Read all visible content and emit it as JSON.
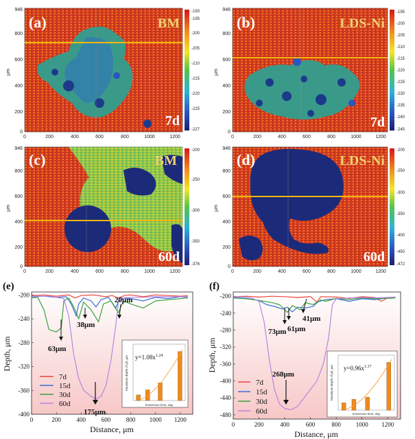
{
  "maps": [
    {
      "letter": "(a)",
      "name": "BM",
      "day": "7d",
      "y_ticks": [
        "946",
        "800",
        "600",
        "400",
        "200",
        "0"
      ],
      "cb_ticks": [
        "-193",
        "-195",
        "-200",
        "-205",
        "-210",
        "-215",
        "-220",
        "-225",
        "-227"
      ]
    },
    {
      "letter": "(b)",
      "name": "LDS-Ni",
      "day": "7d",
      "y_ticks": [
        "946",
        "800",
        "600",
        "400",
        "200",
        "0"
      ],
      "cb_ticks": [
        "-195",
        "-200",
        "-205",
        "-210",
        "-215",
        "-220",
        "-225",
        "-230",
        "-235",
        "-240",
        "-245"
      ]
    },
    {
      "letter": "(c)",
      "name": "BM",
      "day": "60d",
      "y_ticks": [
        "946",
        "800",
        "600",
        "400",
        "200",
        "0"
      ],
      "cb_ticks": [
        "-200",
        "-250",
        "-300",
        "-350",
        "-376"
      ]
    },
    {
      "letter": "(d)",
      "name": "LDS-Ni",
      "day": "60d",
      "y_ticks": [
        "946",
        "800",
        "600",
        "400",
        "200",
        "0"
      ],
      "cb_ticks": [
        "-200",
        "-250",
        "-300",
        "-350",
        "-400",
        "-450",
        "-472"
      ]
    }
  ],
  "map_x_ticks": [
    "0",
    "200",
    "400",
    "600",
    "800",
    "1000",
    "1200"
  ],
  "map_axis_unit": "μm",
  "chart_data": [
    {
      "type": "line",
      "letter": "(e)",
      "xlabel": "Distance, μm",
      "ylabel": "Depth, μm",
      "xlim": [
        0,
        1300
      ],
      "ylim": [
        -400,
        -195
      ],
      "x_ticks": [
        0,
        200,
        400,
        600,
        800,
        1000,
        1200
      ],
      "y_ticks": [
        -200,
        -240,
        -280,
        -320,
        -360,
        -400
      ],
      "series": [
        {
          "name": "7d",
          "color": "#e8463c",
          "points": [
            [
              0,
              -201
            ],
            [
              100,
              -200
            ],
            [
              200,
              -202
            ],
            [
              300,
              -200
            ],
            [
              350,
              -205
            ],
            [
              400,
              -201
            ],
            [
              500,
              -200
            ],
            [
              600,
              -203
            ],
            [
              650,
              -201
            ],
            [
              700,
              -205
            ],
            [
              750,
              -201
            ],
            [
              800,
              -200
            ],
            [
              900,
              -203
            ],
            [
              1000,
              -200
            ],
            [
              1100,
              -201
            ],
            [
              1200,
              -202
            ],
            [
              1260,
              -201
            ]
          ]
        },
        {
          "name": "15d",
          "color": "#3a6fd8",
          "points": [
            [
              0,
              -203
            ],
            [
              100,
              -202
            ],
            [
              200,
              -204
            ],
            [
              280,
              -203
            ],
            [
              320,
              -215
            ],
            [
              360,
              -235
            ],
            [
              380,
              -215
            ],
            [
              420,
              -205
            ],
            [
              480,
              -210
            ],
            [
              520,
              -220
            ],
            [
              560,
              -208
            ],
            [
              620,
              -204
            ],
            [
              680,
              -222
            ],
            [
              710,
              -205
            ],
            [
              800,
              -206
            ],
            [
              900,
              -210
            ],
            [
              1000,
              -204
            ],
            [
              1100,
              -206
            ],
            [
              1200,
              -203
            ],
            [
              1260,
              -204
            ]
          ]
        },
        {
          "name": "30d",
          "color": "#3aa040",
          "points": [
            [
              0,
              -205
            ],
            [
              50,
              -204
            ],
            [
              100,
              -225
            ],
            [
              140,
              -258
            ],
            [
              200,
              -262
            ],
            [
              240,
              -255
            ],
            [
              260,
              -210
            ],
            [
              300,
              -205
            ],
            [
              340,
              -220
            ],
            [
              380,
              -240
            ],
            [
              420,
              -212
            ],
            [
              480,
              -225
            ],
            [
              540,
              -245
            ],
            [
              580,
              -215
            ],
            [
              640,
              -210
            ],
            [
              700,
              -230
            ],
            [
              740,
              -210
            ],
            [
              800,
              -215
            ],
            [
              900,
              -222
            ],
            [
              1000,
              -210
            ],
            [
              1100,
              -208
            ],
            [
              1200,
              -206
            ],
            [
              1260,
              -205
            ]
          ]
        },
        {
          "name": "60d",
          "color": "#b784e0",
          "points": [
            [
              0,
              -202
            ],
            [
              150,
              -202
            ],
            [
              200,
              -204
            ],
            [
              260,
              -206
            ],
            [
              300,
              -235
            ],
            [
              340,
              -300
            ],
            [
              380,
              -340
            ],
            [
              420,
              -360
            ],
            [
              480,
              -370
            ],
            [
              520,
              -374
            ],
            [
              560,
              -370
            ],
            [
              600,
              -352
            ],
            [
              640,
              -310
            ],
            [
              680,
              -250
            ],
            [
              700,
              -212
            ],
            [
              740,
              -205
            ],
            [
              800,
              -204
            ],
            [
              900,
              -204
            ],
            [
              1000,
              -203
            ],
            [
              1100,
              -203
            ],
            [
              1200,
              -203
            ],
            [
              1260,
              -203
            ]
          ]
        }
      ],
      "annotations": [
        "20μm",
        "38μm",
        "63μm",
        "175μm"
      ],
      "inset": {
        "equation": "y=1.08x^1.24",
        "eq_base": "y=1.08x",
        "eq_exp": "1.24",
        "ylabel": "Maximum depth of pit, μm",
        "xlabel": "Immersion time, day",
        "values": [
          20,
          38,
          63,
          175
        ]
      }
    },
    {
      "type": "line",
      "letter": "(f)",
      "xlabel": "Distance, μm",
      "ylabel": "Depth, μm",
      "xlim": [
        0,
        1300
      ],
      "ylim": [
        -490,
        -190
      ],
      "x_ticks": [
        0,
        200,
        400,
        600,
        800,
        1000,
        1200
      ],
      "y_ticks": [
        -200,
        -240,
        -280,
        -320,
        -360,
        -400,
        -440,
        -480
      ],
      "series": [
        {
          "name": "7d",
          "color": "#e8463c",
          "points": [
            [
              0,
              -201
            ],
            [
              100,
              -200
            ],
            [
              200,
              -202
            ],
            [
              300,
              -200
            ],
            [
              400,
              -201
            ],
            [
              500,
              -203
            ],
            [
              600,
              -201
            ],
            [
              650,
              -214
            ],
            [
              680,
              -201
            ],
            [
              800,
              -202
            ],
            [
              900,
              -205
            ],
            [
              1000,
              -201
            ],
            [
              1100,
              -203
            ],
            [
              1150,
              -212
            ],
            [
              1200,
              -204
            ],
            [
              1260,
              -202
            ]
          ]
        },
        {
          "name": "15d",
          "color": "#3a6fd8",
          "points": [
            [
              0,
              -203
            ],
            [
              100,
              -205
            ],
            [
              200,
              -210
            ],
            [
              260,
              -220
            ],
            [
              320,
              -224
            ],
            [
              380,
              -230
            ],
            [
              420,
              -226
            ],
            [
              460,
              -237
            ],
            [
              500,
              -226
            ],
            [
              560,
              -228
            ],
            [
              620,
              -224
            ],
            [
              660,
              -213
            ],
            [
              720,
              -208
            ],
            [
              800,
              -206
            ],
            [
              900,
              -212
            ],
            [
              1000,
              -206
            ],
            [
              1100,
              -208
            ],
            [
              1200,
              -204
            ],
            [
              1260,
              -203
            ]
          ]
        },
        {
          "name": "30d",
          "color": "#3aa040",
          "points": [
            [
              0,
              -204
            ],
            [
              100,
              -206
            ],
            [
              200,
              -210
            ],
            [
              300,
              -215
            ],
            [
              360,
              -220
            ],
            [
              420,
              -238
            ],
            [
              460,
              -222
            ],
            [
              520,
              -232
            ],
            [
              560,
              -215
            ],
            [
              620,
              -220
            ],
            [
              680,
              -209
            ],
            [
              720,
              -212
            ],
            [
              800,
              -205
            ],
            [
              900,
              -208
            ],
            [
              1000,
              -204
            ],
            [
              1100,
              -206
            ],
            [
              1200,
              -205
            ],
            [
              1260,
              -204
            ]
          ]
        },
        {
          "name": "60d",
          "color": "#b784e0",
          "points": [
            [
              0,
              -201
            ],
            [
              100,
              -202
            ],
            [
              150,
              -205
            ],
            [
              200,
              -212
            ],
            [
              240,
              -260
            ],
            [
              280,
              -350
            ],
            [
              320,
              -420
            ],
            [
              360,
              -455
            ],
            [
              400,
              -465
            ],
            [
              450,
              -468
            ],
            [
              500,
              -460
            ],
            [
              550,
              -440
            ],
            [
              600,
              -420
            ],
            [
              650,
              -400
            ],
            [
              700,
              -360
            ],
            [
              740,
              -300
            ],
            [
              770,
              -220
            ],
            [
              800,
              -206
            ],
            [
              900,
              -204
            ],
            [
              1000,
              -203
            ],
            [
              1100,
              -204
            ],
            [
              1200,
              -203
            ],
            [
              1260,
              -202
            ]
          ]
        }
      ],
      "annotations": [
        "41μm",
        "73μm",
        "61μm",
        "268μm"
      ],
      "inset": {
        "equation": "y=0.96x^1.37",
        "eq_base": "y=0.96x",
        "eq_exp": "1.37",
        "ylabel": "Maximum depth of pit, μm",
        "xlabel": "Immersion time, day",
        "values": [
          41,
          61,
          73,
          268
        ]
      }
    }
  ]
}
